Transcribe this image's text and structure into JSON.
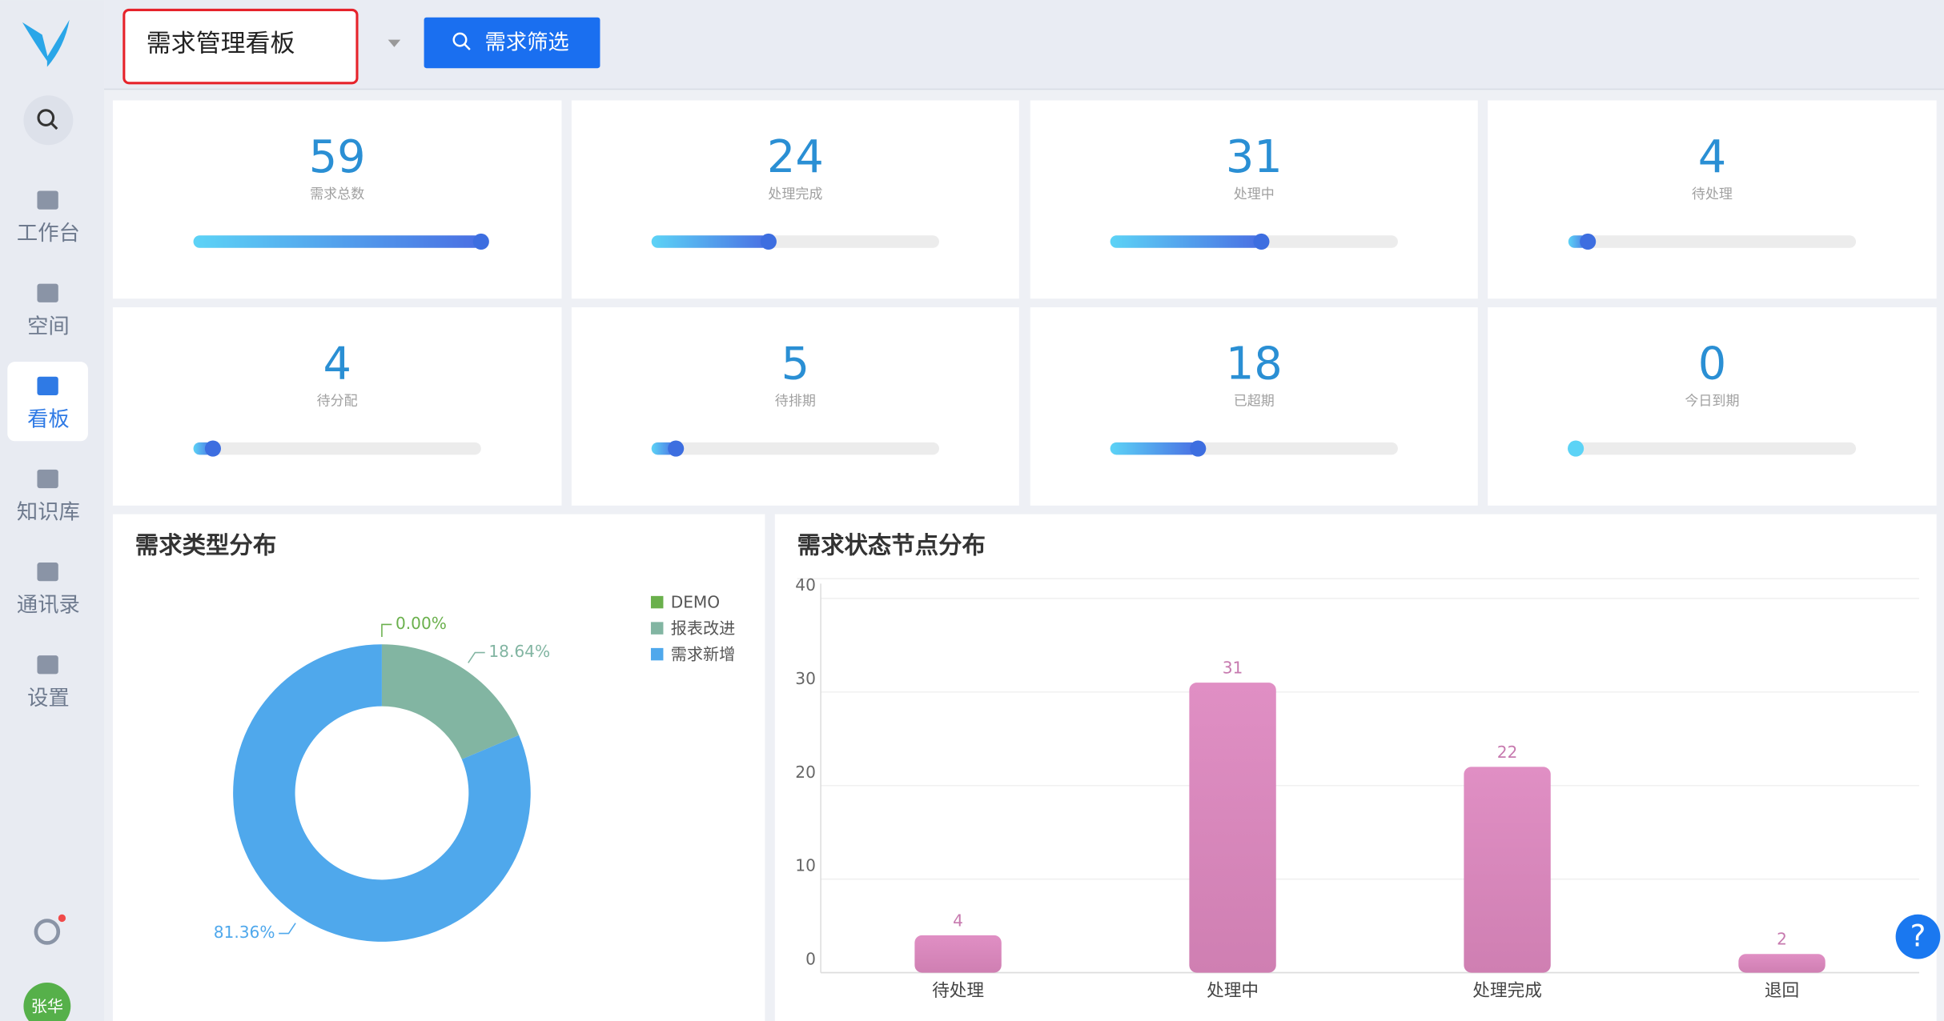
{
  "header": {
    "title": "需求管理看板",
    "filter_button": "需求筛选"
  },
  "sidebar": {
    "nav": [
      "工作台",
      "空间",
      "看板",
      "知识库",
      "通讯录",
      "设置"
    ],
    "active": 2,
    "avatar": "张华"
  },
  "help": "?",
  "stats": [
    {
      "value": 59,
      "label": "需求总数"
    },
    {
      "value": 24,
      "label": "处理完成"
    },
    {
      "value": 31,
      "label": "处理中"
    },
    {
      "value": 4,
      "label": "待处理"
    },
    {
      "value": 4,
      "label": "待分配"
    },
    {
      "value": 5,
      "label": "待排期"
    },
    {
      "value": 18,
      "label": "已超期"
    },
    {
      "value": 0,
      "label": "今日到期"
    }
  ],
  "pie_chart": {
    "type": "pie",
    "title": "需求类型分布",
    "categories": [
      "DEMO",
      "报表改进",
      "需求新增"
    ],
    "values": [
      0,
      18.64,
      81.36
    ],
    "value_labels": [
      "0.00%",
      "18.64%",
      "81.36%"
    ],
    "colors": [
      "#6ab04c",
      "#82b5a2",
      "#4fa8ec"
    ]
  },
  "bar_chart": {
    "type": "bar",
    "title": "需求状态节点分布",
    "categories": [
      "待处理",
      "处理中",
      "处理完成",
      "退回"
    ],
    "values": [
      4,
      31,
      22,
      2
    ],
    "color": "#d98bbf",
    "ylim": [
      0,
      40
    ],
    "yticks": [
      0,
      10,
      20,
      30,
      40
    ],
    "grid": true
  }
}
